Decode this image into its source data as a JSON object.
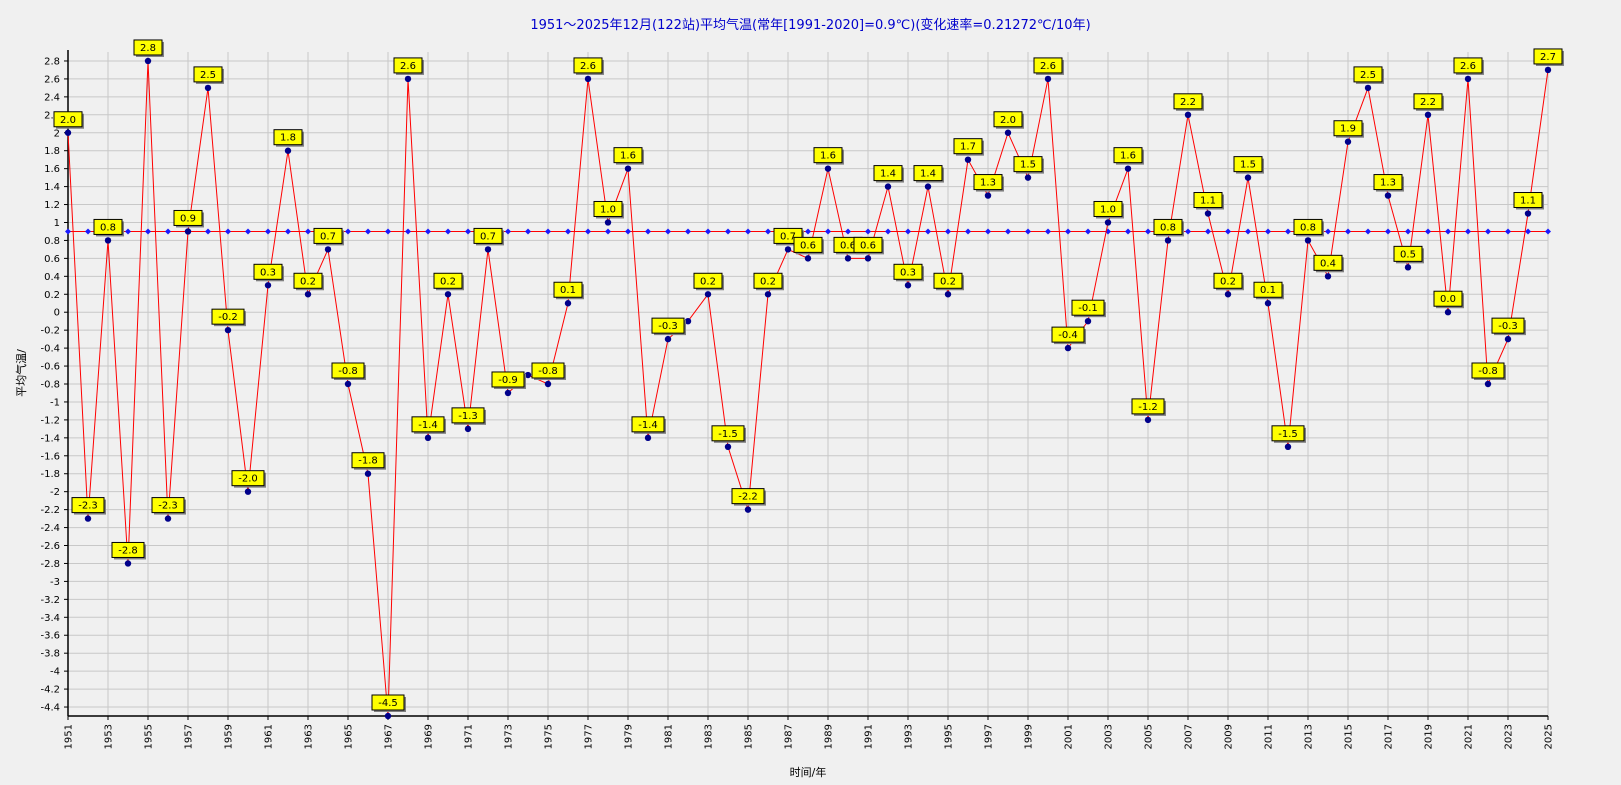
{
  "chart_data": {
    "type": "line",
    "title": "1951～2025年12月(122站)平均气温(常年[1991-2020]=0.9℃)(变化速率=0.21272℃/10年)",
    "xlabel": "时间/年",
    "ylabel": "平均气温/",
    "ylim": [
      -4.5,
      2.9
    ],
    "y_ticks": [
      2.8,
      2.6,
      2.4,
      2.2,
      2,
      1.8,
      1.6,
      1.4,
      1.2,
      1,
      0.8,
      0.6,
      0.4,
      0.2,
      0,
      -0.2,
      -0.4,
      -0.6,
      -0.8,
      -1,
      -1.2,
      -1.4,
      -1.6,
      -1.8,
      -2,
      -2.2,
      -2.4,
      -2.6,
      -2.8,
      -3,
      -3.2,
      -3.4,
      -3.6,
      -3.8,
      -4,
      -4.2,
      -4.4
    ],
    "x_ticks": [
      1951,
      1953,
      1955,
      1957,
      1959,
      1961,
      1963,
      1965,
      1967,
      1969,
      1971,
      1973,
      1975,
      1977,
      1979,
      1981,
      1983,
      1985,
      1987,
      1989,
      1991,
      1993,
      1995,
      1997,
      1999,
      2001,
      2003,
      2005,
      2007,
      2009,
      2011,
      2013,
      2015,
      2017,
      2019,
      2021,
      2023,
      2025
    ],
    "grid": true,
    "normal_value": 0.9,
    "x": [
      1951,
      1952,
      1953,
      1954,
      1955,
      1956,
      1957,
      1958,
      1959,
      1960,
      1961,
      1962,
      1963,
      1964,
      1965,
      1966,
      1967,
      1968,
      1969,
      1970,
      1971,
      1972,
      1973,
      1974,
      1975,
      1976,
      1977,
      1978,
      1979,
      1980,
      1981,
      1982,
      1983,
      1984,
      1985,
      1986,
      1987,
      1988,
      1989,
      1990,
      1991,
      1992,
      1993,
      1994,
      1995,
      1996,
      1997,
      1998,
      1999,
      2000,
      2001,
      2002,
      2003,
      2004,
      2005,
      2006,
      2007,
      2008,
      2009,
      2010,
      2011,
      2012,
      2013,
      2014,
      2015,
      2016,
      2017,
      2018,
      2019,
      2020,
      2021,
      2022,
      2023,
      2024,
      2025
    ],
    "series": [
      {
        "values": [
          2.0,
          -2.3,
          0.8,
          -2.8,
          2.8,
          -2.3,
          0.9,
          2.5,
          -0.2,
          -2.0,
          0.3,
          1.8,
          0.2,
          0.7,
          -0.8,
          -1.8,
          -4.5,
          2.6,
          -1.4,
          0.2,
          -1.3,
          0.7,
          -0.9,
          -0.7,
          -0.8,
          0.1,
          2.6,
          1.0,
          1.6,
          -1.4,
          -0.3,
          -0.1,
          0.2,
          -1.5,
          -2.2,
          0.2,
          0.7,
          0.6,
          1.6,
          0.6,
          0.6,
          1.4,
          0.3,
          1.4,
          0.2,
          1.7,
          1.3,
          2.0,
          1.5,
          2.6,
          -0.4,
          -0.1,
          1.0,
          1.6,
          -1.2,
          0.8,
          2.2,
          1.1,
          0.2,
          1.5,
          0.1,
          -1.5,
          0.8,
          0.4,
          1.9,
          2.5,
          1.3,
          0.5,
          2.2,
          0.0,
          2.6,
          -0.8,
          -0.3,
          1.1,
          2.7
        ],
        "color": "#ff0000",
        "marker_color": "#00008b"
      }
    ],
    "labeled_points": [
      {
        "x": 1951,
        "v": 2.0,
        "text": "2.0"
      },
      {
        "x": 1952,
        "v": -2.3,
        "text": "-2.3"
      },
      {
        "x": 1953,
        "v": 0.8,
        "text": "0.8"
      },
      {
        "x": 1954,
        "v": -2.8,
        "text": "-2.8"
      },
      {
        "x": 1955,
        "v": 2.8,
        "text": "2.8"
      },
      {
        "x": 1956,
        "v": -2.3,
        "text": "-2.3"
      },
      {
        "x": 1957,
        "v": 0.9,
        "text": "0.9"
      },
      {
        "x": 1958,
        "v": 2.5,
        "text": "2.5"
      },
      {
        "x": 1959,
        "v": -0.2,
        "text": "-0.2"
      },
      {
        "x": 1960,
        "v": -2.0,
        "text": "-2.0"
      },
      {
        "x": 1961,
        "v": 0.3,
        "text": "0.3"
      },
      {
        "x": 1962,
        "v": 1.8,
        "text": "1.8"
      },
      {
        "x": 1963,
        "v": 0.2,
        "text": "0.2"
      },
      {
        "x": 1964,
        "v": 0.7,
        "text": "0.7"
      },
      {
        "x": 1965,
        "v": -0.8,
        "text": "-0.8"
      },
      {
        "x": 1966,
        "v": -1.8,
        "text": "-1.8"
      },
      {
        "x": 1967,
        "v": -4.5,
        "text": "-4.5"
      },
      {
        "x": 1968,
        "v": 2.6,
        "text": "2.6"
      },
      {
        "x": 1969,
        "v": -1.4,
        "text": "-1.4"
      },
      {
        "x": 1970,
        "v": 0.2,
        "text": "0.2"
      },
      {
        "x": 1971,
        "v": -1.3,
        "text": "-1.3"
      },
      {
        "x": 1972,
        "v": 0.7,
        "text": "0.7"
      },
      {
        "x": 1973,
        "v": -0.9,
        "text": "-0.9"
      },
      {
        "x": 1975,
        "v": -0.8,
        "text": "-0.8"
      },
      {
        "x": 1976,
        "v": 0.1,
        "text": "0.1"
      },
      {
        "x": 1977,
        "v": 2.6,
        "text": "2.6"
      },
      {
        "x": 1978,
        "v": 1.0,
        "text": "1.0"
      },
      {
        "x": 1979,
        "v": 1.6,
        "text": "1.6"
      },
      {
        "x": 1980,
        "v": -1.4,
        "text": "-1.4"
      },
      {
        "x": 1981,
        "v": -0.3,
        "text": "-0.3"
      },
      {
        "x": 1983,
        "v": 0.2,
        "text": "0.2"
      },
      {
        "x": 1984,
        "v": -1.5,
        "text": "-1.5"
      },
      {
        "x": 1985,
        "v": -2.2,
        "text": "-2.2"
      },
      {
        "x": 1986,
        "v": 0.2,
        "text": "0.2"
      },
      {
        "x": 1987,
        "v": 0.7,
        "text": "0.7"
      },
      {
        "x": 1988,
        "v": 0.6,
        "text": "0.6"
      },
      {
        "x": 1989,
        "v": 1.6,
        "text": "1.6"
      },
      {
        "x": 1990,
        "v": 0.6,
        "text": "0.6"
      },
      {
        "x": 1991,
        "v": 0.6,
        "text": "0.6"
      },
      {
        "x": 1992,
        "v": 1.4,
        "text": "1.4"
      },
      {
        "x": 1993,
        "v": 0.3,
        "text": "0.3"
      },
      {
        "x": 1994,
        "v": 1.4,
        "text": "1.4"
      },
      {
        "x": 1995,
        "v": 0.2,
        "text": "0.2"
      },
      {
        "x": 1996,
        "v": 1.7,
        "text": "1.7"
      },
      {
        "x": 1997,
        "v": 1.3,
        "text": "1.3"
      },
      {
        "x": 1998,
        "v": 2.0,
        "text": "2.0"
      },
      {
        "x": 1999,
        "v": 1.5,
        "text": "1.5"
      },
      {
        "x": 2000,
        "v": 2.6,
        "text": "2.6"
      },
      {
        "x": 2001,
        "v": -0.4,
        "text": "-0.4"
      },
      {
        "x": 2002,
        "v": -0.1,
        "text": "-0.1"
      },
      {
        "x": 2003,
        "v": 1.0,
        "text": "1.0"
      },
      {
        "x": 2004,
        "v": 1.6,
        "text": "1.6"
      },
      {
        "x": 2005,
        "v": -1.2,
        "text": "-1.2"
      },
      {
        "x": 2006,
        "v": 0.8,
        "text": "0.8"
      },
      {
        "x": 2007,
        "v": 2.2,
        "text": "2.2"
      },
      {
        "x": 2008,
        "v": 1.1,
        "text": "1.1"
      },
      {
        "x": 2009,
        "v": 0.2,
        "text": "0.2"
      },
      {
        "x": 2010,
        "v": 1.5,
        "text": "1.5"
      },
      {
        "x": 2011,
        "v": 0.1,
        "text": "0.1"
      },
      {
        "x": 2012,
        "v": -1.5,
        "text": "-1.5"
      },
      {
        "x": 2013,
        "v": 0.8,
        "text": "0.8"
      },
      {
        "x": 2014,
        "v": 0.4,
        "text": "0.4"
      },
      {
        "x": 2015,
        "v": 1.9,
        "text": "1.9"
      },
      {
        "x": 2016,
        "v": 2.5,
        "text": "2.5"
      },
      {
        "x": 2017,
        "v": 1.3,
        "text": "1.3"
      },
      {
        "x": 2018,
        "v": 0.5,
        "text": "0.5"
      },
      {
        "x": 2019,
        "v": 2.2,
        "text": "2.2"
      },
      {
        "x": 2020,
        "v": 0.0,
        "text": "0.0"
      },
      {
        "x": 2021,
        "v": 2.6,
        "text": "2.6"
      },
      {
        "x": 2022,
        "v": -0.8,
        "text": "-0.8"
      },
      {
        "x": 2023,
        "v": -0.3,
        "text": "-0.3"
      },
      {
        "x": 2024,
        "v": 1.1,
        "text": "1.1"
      },
      {
        "x": 2025,
        "v": 2.7,
        "text": "2.7"
      }
    ],
    "colors": {
      "line": "#ff0000",
      "marker": "#00008b",
      "normal_line": "#ff0000",
      "normal_marker": "#1a1aff",
      "label_fill": "#ffff00",
      "label_border": "#000000",
      "grid": "#c8c8c8",
      "title": "#0000cc",
      "background": "#f0f0f0"
    }
  }
}
